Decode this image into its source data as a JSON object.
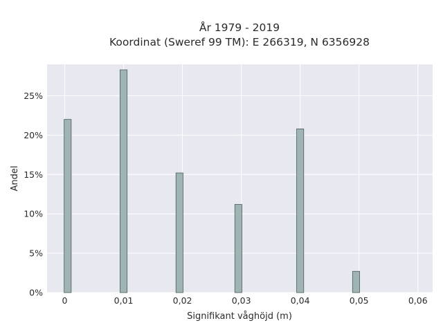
{
  "chart_data": {
    "type": "bar",
    "title_lines": [
      "År 1979 - 2019",
      "Koordinat (Sweref 99 TM): E 266319, N 6356928"
    ],
    "xlabel": "Signifikant våghöjd (m)",
    "ylabel": "Andel",
    "xlim": [
      -0.003,
      0.0625
    ],
    "ylim": [
      0,
      0.29
    ],
    "x_ticks": [
      0,
      0.01,
      0.02,
      0.03,
      0.04,
      0.05,
      0.06
    ],
    "x_tick_labels": [
      "0",
      "0,01",
      "0,02",
      "0,03",
      "0,04",
      "0,05",
      "0,06"
    ],
    "y_ticks": [
      0,
      0.05,
      0.1,
      0.15,
      0.2,
      0.25
    ],
    "y_tick_labels": [
      "0%",
      "5%",
      "10%",
      "15%",
      "20%",
      "25%"
    ],
    "bar_width": 0.0012,
    "x": [
      0.0005,
      0.01,
      0.0195,
      0.0295,
      0.04,
      0.0495
    ],
    "values": [
      0.22,
      0.283,
      0.152,
      0.112,
      0.208,
      0.027
    ],
    "grid": true,
    "colors": {
      "plot_bg": "#e8e8f0",
      "grid": "#ffffff",
      "bar_fill": "#9fb5b3",
      "bar_stroke": "#4a5a58"
    }
  }
}
